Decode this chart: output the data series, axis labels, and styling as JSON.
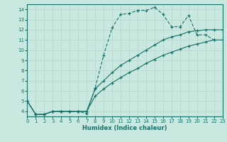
{
  "xlabel": "Humidex (Indice chaleur)",
  "xlim": [
    0,
    23
  ],
  "ylim": [
    3.5,
    14.5
  ],
  "xticks": [
    0,
    1,
    2,
    3,
    4,
    5,
    6,
    7,
    8,
    9,
    10,
    11,
    12,
    13,
    14,
    15,
    16,
    17,
    18,
    19,
    20,
    21,
    22,
    23
  ],
  "yticks": [
    4,
    5,
    6,
    7,
    8,
    9,
    10,
    11,
    12,
    13,
    14
  ],
  "bg_color": "#c8e8e0",
  "line_color": "#1a7068",
  "grid_color": "#b8d8d0",
  "line1_x": [
    0,
    1,
    2,
    3,
    4,
    5,
    6,
    7,
    8,
    9,
    10,
    11,
    12,
    13,
    14,
    15,
    16,
    17,
    18,
    19,
    20,
    21,
    22
  ],
  "line1_y": [
    5.0,
    3.7,
    3.7,
    4.0,
    4.0,
    4.0,
    4.0,
    3.8,
    6.3,
    9.5,
    12.2,
    13.5,
    13.6,
    13.9,
    13.9,
    14.2,
    13.5,
    12.3,
    12.3,
    13.4,
    11.5,
    11.5,
    11.0
  ],
  "line2_x": [
    0,
    1,
    2,
    3,
    4,
    5,
    6,
    7,
    8,
    9,
    10,
    11,
    12,
    13,
    14,
    15,
    16,
    17,
    18,
    19,
    20,
    21,
    22,
    23
  ],
  "line2_y": [
    5.0,
    3.7,
    3.7,
    4.0,
    4.0,
    4.0,
    4.0,
    4.0,
    6.2,
    7.0,
    7.8,
    8.5,
    9.0,
    9.5,
    10.0,
    10.5,
    11.0,
    11.3,
    11.5,
    11.8,
    11.9,
    12.0,
    12.0,
    12.0
  ],
  "line3_x": [
    0,
    1,
    2,
    3,
    4,
    5,
    6,
    7,
    8,
    9,
    10,
    11,
    12,
    13,
    14,
    15,
    16,
    17,
    18,
    19,
    20,
    21,
    22,
    23
  ],
  "line3_y": [
    5.0,
    3.7,
    3.7,
    4.0,
    4.0,
    4.0,
    4.0,
    4.0,
    5.5,
    6.2,
    6.8,
    7.3,
    7.8,
    8.2,
    8.7,
    9.1,
    9.5,
    9.8,
    10.1,
    10.4,
    10.6,
    10.8,
    11.0,
    11.0
  ]
}
